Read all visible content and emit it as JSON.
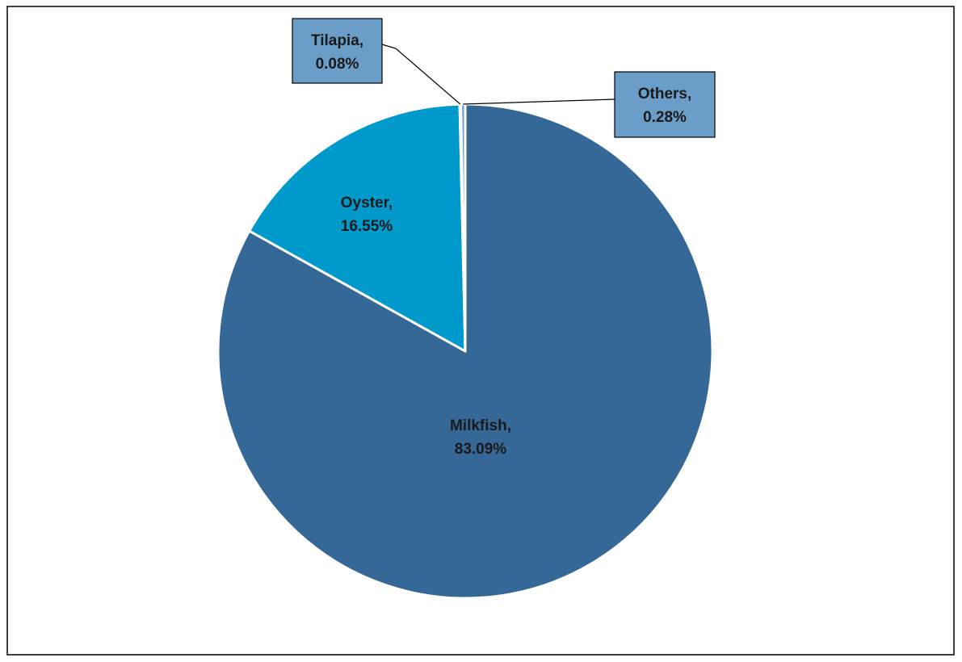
{
  "chart_data": {
    "type": "pie",
    "slices": [
      {
        "name": "Milkfish",
        "value": 83.09,
        "label": "83.09%",
        "color": "#356897"
      },
      {
        "name": "Oyster",
        "value": 16.55,
        "label": "16.55%",
        "color": "#0099cc"
      },
      {
        "name": "Tilapia",
        "value": 0.08,
        "label": "0.08%",
        "color": "#6a9ec8"
      },
      {
        "name": "Others",
        "value": 0.28,
        "label": "0.28%",
        "color": "#6a9ec8"
      }
    ],
    "legend": "none",
    "data_labels": "category name and percentage"
  }
}
